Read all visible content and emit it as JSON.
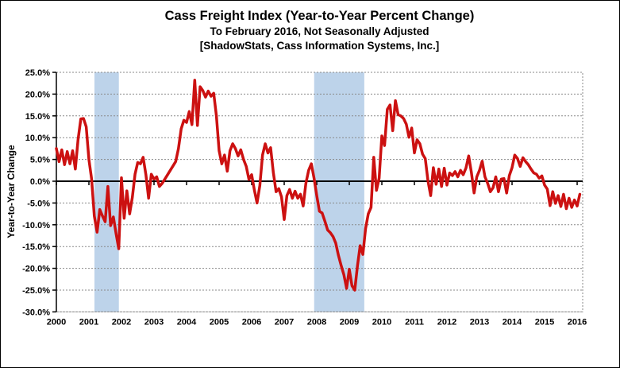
{
  "header": {
    "title": "Cass Freight Index (Year-to-Year Percent Change)",
    "subtitle": "To February 2016, Not Seasonally Adjusted",
    "source": "[ShadowStats, Cass Information Systems, Inc.]"
  },
  "chart_data": {
    "type": "line",
    "title": "Cass Freight Index (Year-to-Year Percent Change)",
    "subtitle": "To February 2016, Not Seasonally Adjusted",
    "source_note": "[ShadowStats, Cass Information Systems, Inc.]",
    "xlabel": "",
    "ylabel": "Year-to-Year Change",
    "ylim": [
      -30,
      25
    ],
    "xlim": [
      2000,
      2016.17
    ],
    "grid": true,
    "legend_position": "none",
    "y_ticks": [
      "25.0%",
      "20.0%",
      "15.0%",
      "10.0%",
      "5.0%",
      "0.0%",
      "-5.0%",
      "-10.0%",
      "-15.0%",
      "-20.0%",
      "-25.0%",
      "-30.0%"
    ],
    "x_ticks": [
      "2000",
      "2001",
      "2002",
      "2003",
      "2004",
      "2005",
      "2006",
      "2007",
      "2008",
      "2009",
      "2010",
      "2011",
      "2012",
      "2013",
      "2014",
      "2015",
      "2016"
    ],
    "recession_bands": [
      [
        2001.17,
        2001.92
      ],
      [
        2007.92,
        2009.46
      ]
    ],
    "colors": {
      "line": "#cc1111",
      "recession_band": "#bdd3ea",
      "grid": "#8a8a8a",
      "axis": "#000000",
      "background": "#ffffff"
    },
    "series": [
      {
        "name": "Cass Freight Index, Year-to-Year Percent Change",
        "frequency": "monthly",
        "start": "2000-01",
        "end": "2016-02",
        "unit": "percent",
        "values": [
          7.5,
          4.5,
          7.2,
          3.8,
          6.8,
          4.0,
          7.0,
          2.8,
          9.5,
          14.3,
          14.4,
          12.5,
          5.0,
          0.5,
          -8.0,
          -11.7,
          -6.5,
          -8.0,
          -9.3,
          -1.2,
          -10.2,
          -8.2,
          -12.0,
          -15.5,
          0.8,
          -8.5,
          -2.2,
          -7.5,
          -3.7,
          1.6,
          4.3,
          4.0,
          5.5,
          1.5,
          -3.9,
          1.6,
          0.5,
          1.0,
          -1.2,
          -0.5,
          0.5,
          1.5,
          2.5,
          3.5,
          4.5,
          7.5,
          12.0,
          14.0,
          13.5,
          16.0,
          13.0,
          23.2,
          12.8,
          21.7,
          20.8,
          19.3,
          20.7,
          19.5,
          20.2,
          15.0,
          7.0,
          4.0,
          6.0,
          2.3,
          7.0,
          8.6,
          7.5,
          5.8,
          7.2,
          5.0,
          3.4,
          0.4,
          1.5,
          -2.0,
          -5.0,
          -1.0,
          6.0,
          8.6,
          6.5,
          7.7,
          2.0,
          -2.4,
          -1.7,
          -3.6,
          -8.8,
          -3.3,
          -1.9,
          -3.9,
          -2.3,
          -3.9,
          -3.0,
          -5.7,
          -0.5,
          2.5,
          4.0,
          0.7,
          -3.3,
          -6.9,
          -7.3,
          -9.2,
          -11.2,
          -11.8,
          -12.7,
          -14.2,
          -17.0,
          -19.4,
          -21.5,
          -24.6,
          -20.2,
          -24.0,
          -25.0,
          -19.4,
          -14.8,
          -16.8,
          -10.9,
          -7.5,
          -6.0,
          5.5,
          -2.1,
          0.7,
          10.4,
          8.2,
          16.5,
          17.5,
          11.6,
          18.5,
          15.3,
          15.0,
          14.4,
          13.1,
          10.1,
          12.2,
          6.5,
          9.5,
          8.6,
          6.2,
          5.2,
          0.1,
          -3.3,
          3.1,
          -0.7,
          2.8,
          -1.2,
          3.0,
          -0.9,
          1.9,
          1.3,
          2.2,
          1.0,
          2.5,
          1.5,
          3.0,
          5.8,
          2.0,
          -2.7,
          1.0,
          2.5,
          4.6,
          1.0,
          -0.5,
          -2.4,
          -1.5,
          1.0,
          -2.4,
          0.5,
          0.6,
          -2.7,
          1.3,
          3.1,
          6.0,
          5.2,
          3.4,
          5.4,
          4.5,
          3.8,
          2.8,
          1.9,
          1.6,
          0.7,
          1.2,
          -0.9,
          -1.8,
          -5.6,
          -2.4,
          -5.1,
          -3.3,
          -5.8,
          -3.0,
          -6.3,
          -3.9,
          -6.0,
          -4.3,
          -5.7,
          -3.0
        ]
      }
    ]
  }
}
